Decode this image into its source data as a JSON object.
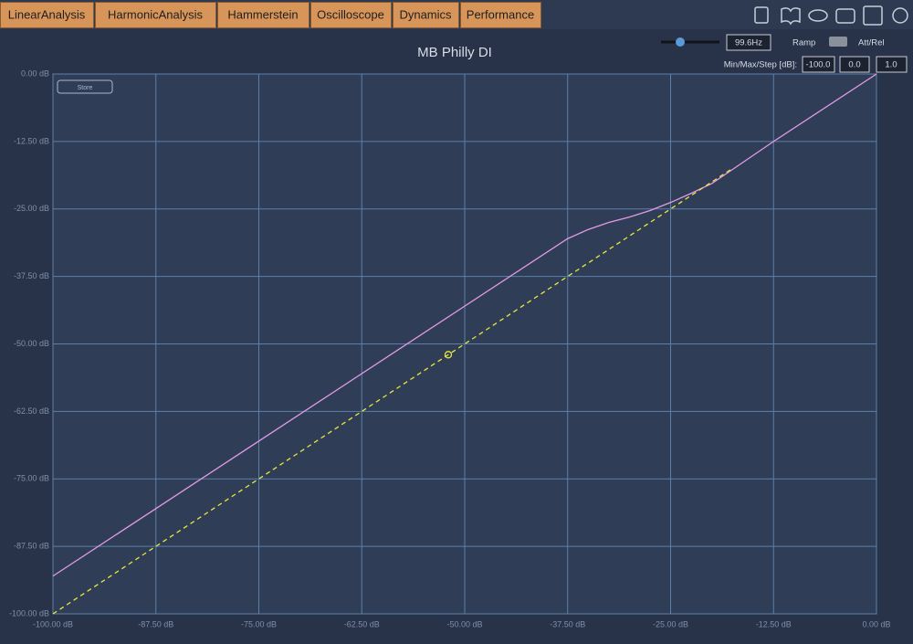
{
  "tabs": [
    "LinearAnalysis",
    "HarmonicAnalysis",
    "Hammerstein",
    "Oscilloscope",
    "Dynamics",
    "Performance"
  ],
  "controls": {
    "frequency": "99.6Hz",
    "ramp": "Ramp",
    "att_rel": "Att/Rel",
    "range_label": "Min/Max/Step [dB]:",
    "min": "-100.0",
    "max": "0.0",
    "step": "1.0",
    "store": "Store"
  },
  "chart_data": {
    "type": "line",
    "title": "MB Philly DI",
    "xlim": [
      -100,
      0
    ],
    "ylim": [
      -100,
      0
    ],
    "grid": true,
    "xticks": [
      {
        "value": -100,
        "label": "-100.00 dB"
      },
      {
        "value": -87.5,
        "label": "-87.50 dB"
      },
      {
        "value": -75,
        "label": "-75.00 dB"
      },
      {
        "value": -62.5,
        "label": "-62.50 dB"
      },
      {
        "value": -50,
        "label": "-50.00 dB"
      },
      {
        "value": -37.5,
        "label": "-37.50 dB"
      },
      {
        "value": -25,
        "label": "-25.00 dB"
      },
      {
        "value": -12.5,
        "label": "-12.50 dB"
      },
      {
        "value": 0,
        "label": "0.00 dB"
      }
    ],
    "yticks": [
      {
        "value": 0,
        "label": "0.00 dB"
      },
      {
        "value": -12.5,
        "label": "-12.50 dB"
      },
      {
        "value": -25,
        "label": "-25.00 dB"
      },
      {
        "value": -37.5,
        "label": "-37.50 dB"
      },
      {
        "value": -50,
        "label": "-50.00 dB"
      },
      {
        "value": -62.5,
        "label": "-62.50 dB"
      },
      {
        "value": -75,
        "label": "-75.00 dB"
      },
      {
        "value": -87.5,
        "label": "-87.50 dB"
      },
      {
        "value": -100,
        "label": "-100.00 dB"
      }
    ],
    "series": [
      {
        "color": "#e39be6",
        "dashed": false,
        "x": [
          -100,
          -37.5,
          -35,
          -32.5,
          -30,
          -27.5,
          -25,
          -22.5,
          -20,
          -17.5,
          -12.5,
          0
        ],
        "values": [
          -93,
          -30.5,
          -28.8,
          -27.5,
          -26.5,
          -25.3,
          -23.8,
          -22.1,
          -20.3,
          -17.7,
          -12.5,
          0
        ]
      },
      {
        "color": "#e8e83a",
        "dashed": true,
        "x": [
          -100,
          -17.5
        ],
        "values": [
          -100,
          -17.5
        ]
      }
    ],
    "marker": {
      "x": -52,
      "y": -52,
      "color": "#e8e83a"
    }
  }
}
